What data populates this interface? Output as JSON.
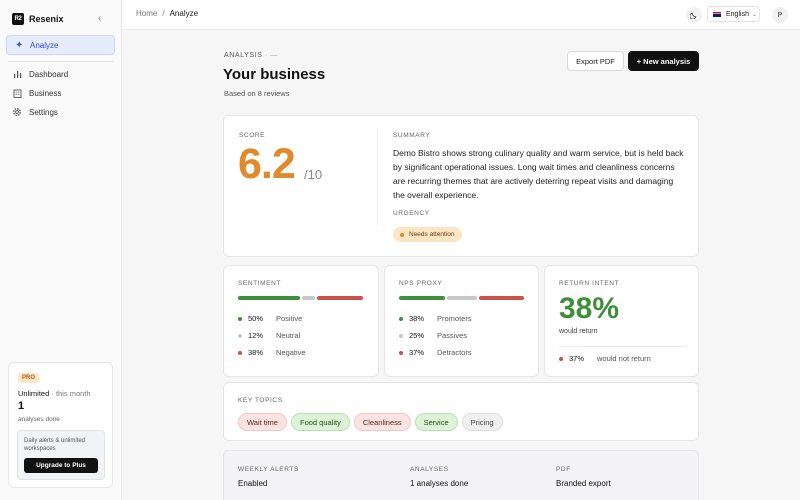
{
  "sidebar": {
    "brand": {
      "logo": "R2",
      "name": "Resenix",
      "collapse_icon": "chevron-left-icon"
    },
    "active_item": {
      "label": "Analyze",
      "icon": "sparkle-icon"
    },
    "items": [
      {
        "label": "Dashboard",
        "icon": "bar-chart-icon"
      },
      {
        "label": "Business",
        "icon": "building-icon"
      },
      {
        "label": "Settings",
        "icon": "gear-icon"
      }
    ],
    "plan": {
      "badge": "PRO",
      "plan_name": "Unlimited",
      "period": "· this month",
      "count": "1",
      "count_label": "analyses done",
      "upsell_text": "Daily alerts & unlimited workspaces",
      "upgrade_label": "Upgrade to Plus"
    }
  },
  "topbar": {
    "breadcrumb": {
      "home": "Home",
      "separator": "/",
      "current": "Analyze"
    },
    "theme_icon": "moon-icon",
    "language": "English",
    "avatar_initial": "P"
  },
  "header": {
    "eyebrow": "ANALYSIS",
    "eyebrow_suffix": "· —",
    "title": "Your business",
    "subtitle": "Based on 8 reviews",
    "export_label": "Export PDF",
    "new_label": "+ New analysis"
  },
  "score": {
    "label": "SCORE",
    "value": "6.2",
    "out_of": "/10",
    "summary_label": "SUMMARY",
    "summary": "Demo Bistro shows strong culinary quality and warm service, but is held back by significant operational issues. Long wait times and cleanliness concerns are recurring themes that are actively deterring repeat visits and damaging the overall experience.",
    "urgency_label": "URGENCY",
    "urgency": "Needs attention"
  },
  "sentiment": {
    "label": "SENTIMENT",
    "rows": [
      {
        "pct": "50%",
        "name": "Positive",
        "share": 0.5,
        "color": "#3f8f3a"
      },
      {
        "pct": "12%",
        "name": "Neutral",
        "share": 0.12,
        "color": "#c8c8ca"
      },
      {
        "pct": "38%",
        "name": "Negative",
        "share": 0.38,
        "color": "#c9524a"
      }
    ]
  },
  "nps": {
    "label": "NPS PROXY",
    "rows": [
      {
        "pct": "38%",
        "name": "Promoters",
        "share": 0.38,
        "color": "#3f8f3a"
      },
      {
        "pct": "25%",
        "name": "Passives",
        "share": 0.25,
        "color": "#c8c8ca"
      },
      {
        "pct": "37%",
        "name": "Detractors",
        "share": 0.37,
        "color": "#c9524a"
      }
    ]
  },
  "return_intent": {
    "label": "RETURN INTENT",
    "value": "38%",
    "sub": "would return",
    "not_pct": "37%",
    "not_label": "would not return",
    "not_color": "#c9524a"
  },
  "topics": {
    "label": "KEY TOPICS",
    "items": [
      {
        "name": "Wait time",
        "tone": "neg"
      },
      {
        "name": "Food quality",
        "tone": "pos"
      },
      {
        "name": "Cleanliness",
        "tone": "neg"
      },
      {
        "name": "Service",
        "tone": "pos"
      },
      {
        "name": "Pricing",
        "tone": "neu"
      }
    ]
  },
  "plan_strip": [
    {
      "label": "WEEKLY ALERTS",
      "value": "Enabled"
    },
    {
      "label": "ANALYSES",
      "value": "1 analyses done"
    },
    {
      "label": "PDF",
      "value": "Branded export"
    }
  ]
}
